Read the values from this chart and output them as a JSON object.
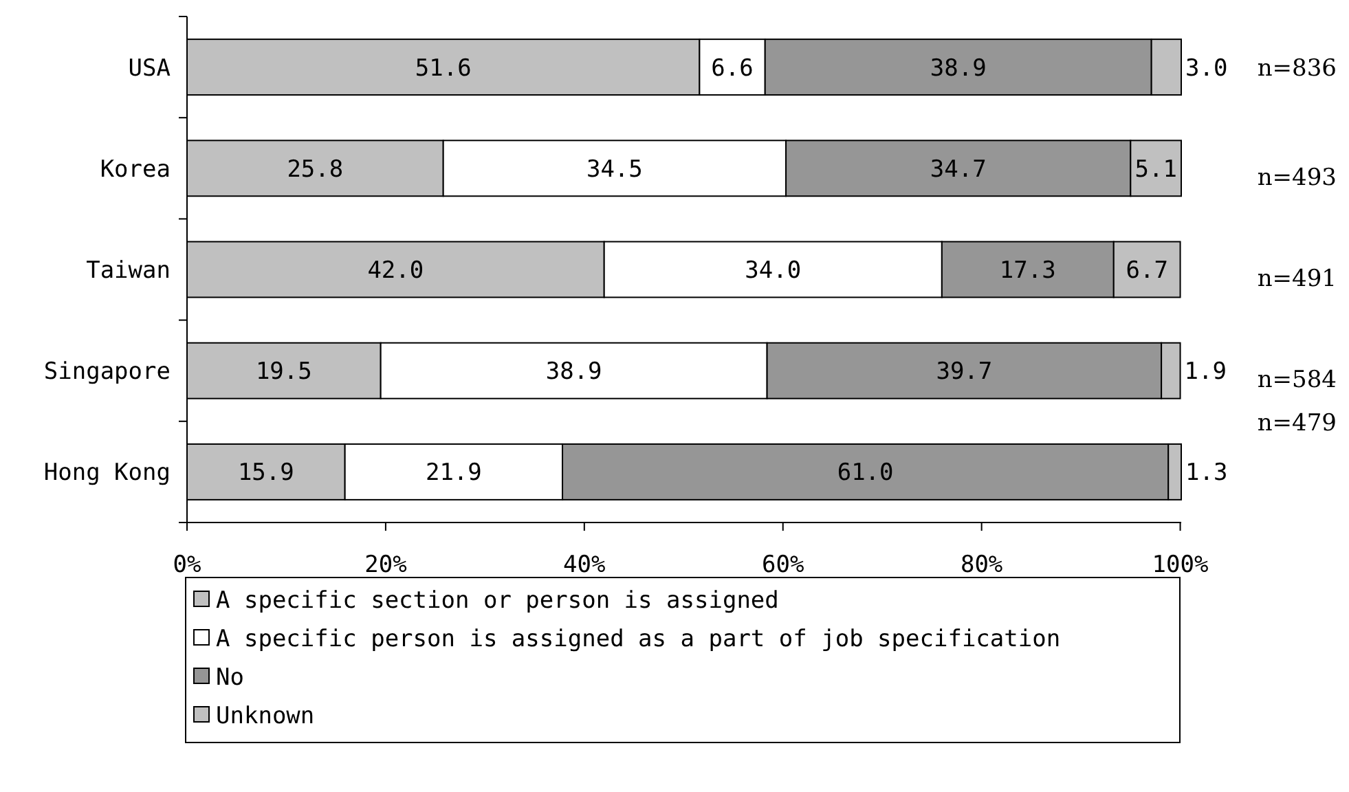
{
  "chart_data": {
    "type": "bar",
    "orientation": "horizontal",
    "stacked": true,
    "categories": [
      "USA",
      "Korea",
      "Taiwan",
      "Singapore",
      "Hong Kong"
    ],
    "series": [
      {
        "name": "A specific section or person is assigned",
        "color": "#c0c0c0",
        "values": [
          51.6,
          25.8,
          42.0,
          19.5,
          15.9
        ],
        "value_labels": [
          "51.6",
          "25.8",
          "42.0",
          "19.5",
          "15.9"
        ]
      },
      {
        "name": "A specific person is assigned as a part of job specification",
        "color": "#ffffff",
        "values": [
          6.6,
          34.5,
          34.0,
          38.9,
          21.9
        ],
        "value_labels": [
          "6.6",
          "34.5",
          "34.0",
          "38.9",
          "21.9"
        ]
      },
      {
        "name": "No",
        "color": "#969696",
        "values": [
          38.9,
          34.7,
          17.3,
          39.7,
          61.0
        ],
        "value_labels": [
          "38.9",
          "34.7",
          "17.3",
          "39.7",
          "61.0"
        ]
      },
      {
        "name": "Unknown",
        "color": "#c0c0c0",
        "values": [
          3.0,
          5.1,
          6.7,
          1.9,
          1.3
        ],
        "value_labels": [
          "3.0",
          "5.1",
          "6.7",
          "1.9",
          "1.3"
        ]
      }
    ],
    "xlim": [
      0,
      100.1
    ],
    "xticks": [
      {
        "value": 0,
        "label": "0%"
      },
      {
        "value": 20,
        "label": "20%"
      },
      {
        "value": 40,
        "label": "40%"
      },
      {
        "value": 60,
        "label": "60%"
      },
      {
        "value": 80,
        "label": "80%"
      },
      {
        "value": 100,
        "label": "100%"
      }
    ],
    "legend": "bottom",
    "annotations": [
      "n=836",
      "n=493",
      "n=491",
      "n=584",
      "n=479"
    ]
  }
}
